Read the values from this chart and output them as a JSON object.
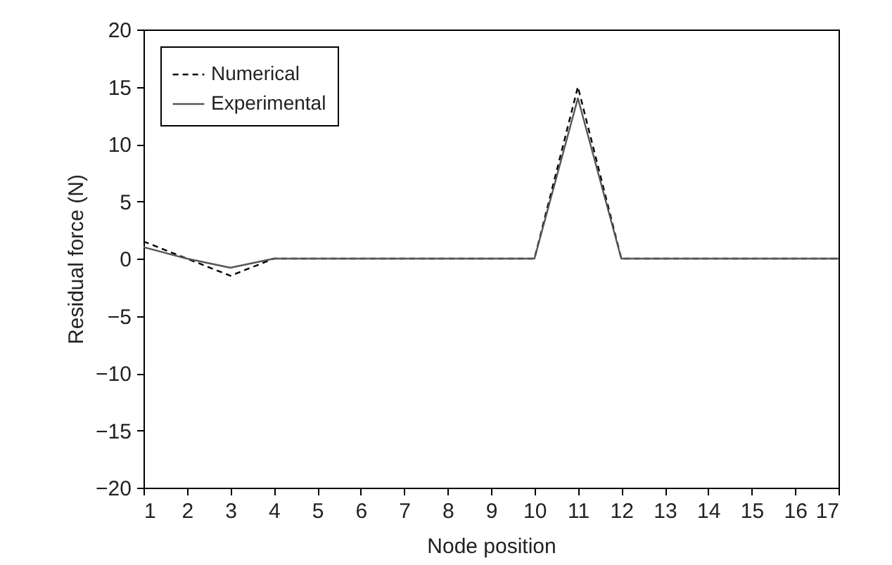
{
  "chart_data": {
    "type": "line",
    "xlabel": "Node position",
    "ylabel": "Residual force (N)",
    "x": [
      1,
      2,
      3,
      4,
      5,
      6,
      7,
      8,
      9,
      10,
      11,
      12,
      13,
      14,
      15,
      16,
      17
    ],
    "series": [
      {
        "name": "Numerical",
        "color": "#000000",
        "line_style": "dashed",
        "values": [
          1.5,
          0,
          -1.5,
          0,
          0,
          0,
          0,
          0,
          0,
          0,
          15,
          0,
          0,
          0,
          0,
          0,
          0
        ]
      },
      {
        "name": "Experimental",
        "color": "#555555",
        "line_style": "solid",
        "values": [
          1,
          0,
          -0.8,
          0,
          0,
          0,
          0,
          0,
          0,
          0,
          14,
          0,
          0,
          0,
          0,
          0,
          0
        ]
      }
    ],
    "xlim": [
      1,
      17
    ],
    "xticks": [
      1,
      2,
      3,
      4,
      5,
      6,
      7,
      8,
      9,
      10,
      11,
      12,
      13,
      14,
      15,
      16,
      17
    ],
    "ylim": [
      -20,
      20
    ],
    "yticks": [
      -20,
      -15,
      -10,
      -5,
      0,
      5,
      10,
      15,
      20
    ],
    "grid": false,
    "legend": "top left",
    "marker": "none"
  }
}
